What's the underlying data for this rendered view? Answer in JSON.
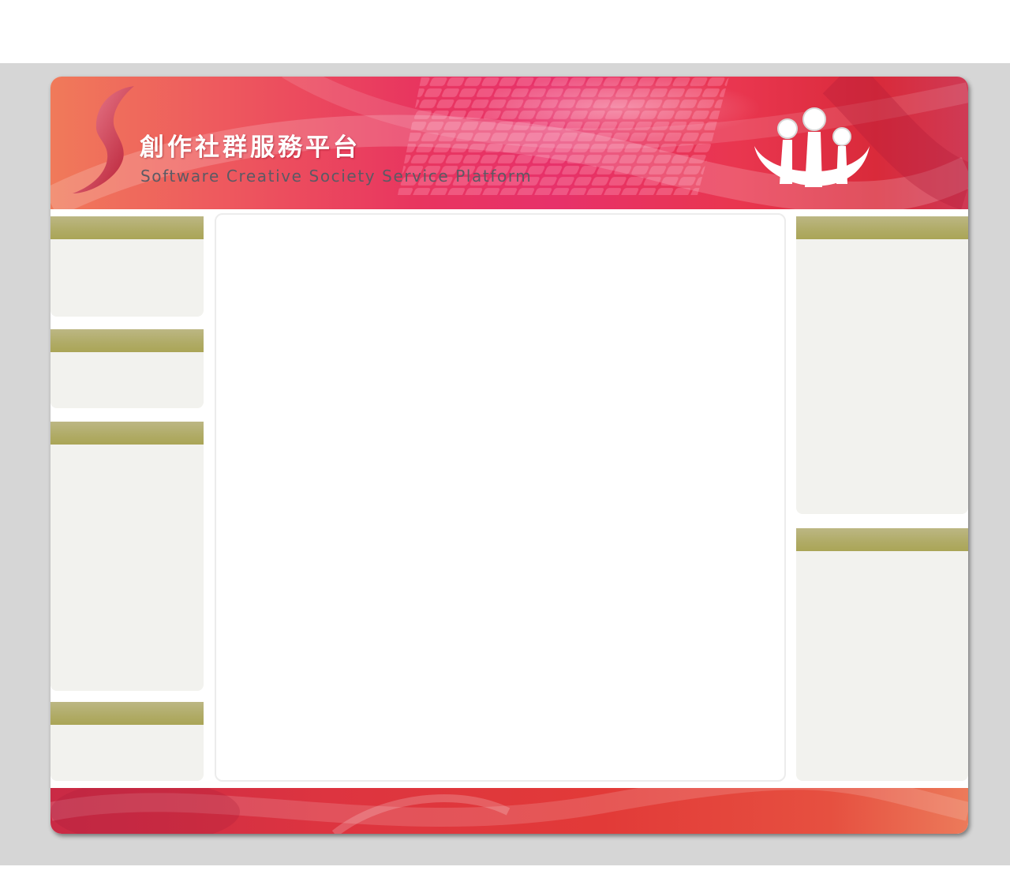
{
  "header": {
    "title_zh": "創作社群服務平台",
    "title_en": "Software Creative Society Service Platform",
    "logo_icon": "swoosh-s-logo-icon",
    "emblem_icon": "people-group-icon"
  },
  "sidebar_left": {
    "panels": [
      {
        "title": ""
      },
      {
        "title": ""
      },
      {
        "title": ""
      },
      {
        "title": ""
      }
    ]
  },
  "sidebar_right": {
    "panels": [
      {
        "title": ""
      },
      {
        "title": ""
      }
    ]
  },
  "main": {
    "content": ""
  },
  "colors": {
    "header_primary": "#e7316a",
    "header_accent": "#f07a5a",
    "panel_header": "#b0ab66",
    "panel_body": "#f2f2ee",
    "page_backdrop": "#d6d6d6"
  }
}
